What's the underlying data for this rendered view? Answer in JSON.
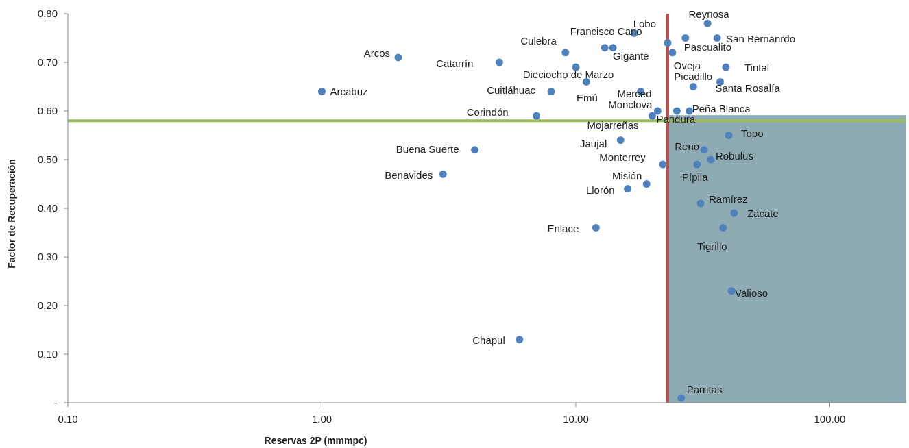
{
  "chart_data": {
    "type": "scatter",
    "xlabel": "Reservas 2P (mmmpc)",
    "ylabel": "Factor de Recuperación",
    "log": "x",
    "grid": false,
    "marker": "circle",
    "xlim": [
      0.1,
      200
    ],
    "xticks": [
      {
        "value": 0.1,
        "label": "0.10"
      },
      {
        "value": 1,
        "label": "1.00"
      },
      {
        "value": 10,
        "label": "10.00"
      },
      {
        "value": 100,
        "label": "100.00"
      }
    ],
    "ylim": [
      0,
      0.8
    ],
    "yticks": [
      {
        "value": 0,
        "label": "-"
      },
      {
        "value": 0.1,
        "label": "0.10"
      },
      {
        "value": 0.2,
        "label": "0.20"
      },
      {
        "value": 0.3,
        "label": "0.30"
      },
      {
        "value": 0.4,
        "label": "0.40"
      },
      {
        "value": 0.5,
        "label": "0.50"
      },
      {
        "value": 0.6,
        "label": "0.60"
      },
      {
        "value": 0.7,
        "label": "0.70"
      },
      {
        "value": 0.8,
        "label": "0.80"
      }
    ],
    "series": [
      {
        "color": "#4f81bd",
        "x": [
          1.0,
          2.0,
          5.0,
          9.1,
          13,
          17,
          33,
          36,
          14,
          27,
          24,
          39,
          10,
          11,
          8.0,
          18,
          29,
          37,
          21,
          28,
          7.0,
          20,
          25,
          4.0,
          15,
          40,
          32,
          34,
          22,
          3.0,
          19,
          30,
          16,
          31,
          42,
          38,
          12,
          41,
          6.0,
          26,
          23
        ],
        "values": [
          0.64,
          0.71,
          0.7,
          0.72,
          0.73,
          0.76,
          0.78,
          0.75,
          0.73,
          0.75,
          0.72,
          0.69,
          0.69,
          0.66,
          0.64,
          0.64,
          0.65,
          0.66,
          0.6,
          0.6,
          0.59,
          0.59,
          0.6,
          0.52,
          0.54,
          0.55,
          0.52,
          0.5,
          0.49,
          0.47,
          0.45,
          0.49,
          0.44,
          0.41,
          0.39,
          0.36,
          0.36,
          0.23,
          0.13,
          0.01,
          0.74
        ]
      }
    ],
    "ref_lines": [
      {
        "axis": "x",
        "value": 23,
        "color": "#c0504d"
      },
      {
        "axis": "y",
        "value": 0.58,
        "color": "#9bbb59"
      }
    ],
    "bands": [
      {
        "axis": "x",
        "from": 23,
        "to": 200,
        "color": "#8eabb3"
      }
    ],
    "annotations": [
      {
        "text": "Arcabuz",
        "x": 1.0,
        "y": 0.64
      },
      {
        "text": "Arcos",
        "x": 2.0,
        "y": 0.71
      },
      {
        "text": "Catarrín",
        "x": 5.0,
        "y": 0.7
      },
      {
        "text": "Culebra",
        "x": 9.1,
        "y": 0.72
      },
      {
        "text": "Francisco Cano",
        "x": 13,
        "y": 0.73
      },
      {
        "text": "Lobo",
        "x": 17,
        "y": 0.76
      },
      {
        "text": "Reynosa",
        "x": 33,
        "y": 0.78
      },
      {
        "text": "San Bernanrdo",
        "x": 36,
        "y": 0.75
      },
      {
        "text": "Gigante",
        "x": 14,
        "y": 0.73
      },
      {
        "text": "Pascualito",
        "x": 27,
        "y": 0.75
      },
      {
        "text": "Oveja",
        "x": 24,
        "y": 0.72
      },
      {
        "text": "Tintal",
        "x": 39,
        "y": 0.69
      },
      {
        "text": "Dieciocho de Marzo",
        "x": 10,
        "y": 0.69
      },
      {
        "text": "Emú",
        "x": 11,
        "y": 0.66
      },
      {
        "text": "Cuitláhuac",
        "x": 8.0,
        "y": 0.64
      },
      {
        "text": "Merced",
        "x": 18,
        "y": 0.64
      },
      {
        "text": "Picadillo",
        "x": 29,
        "y": 0.65
      },
      {
        "text": "Santa Rosalía",
        "x": 37,
        "y": 0.66
      },
      {
        "text": "Monclova",
        "x": 21,
        "y": 0.6
      },
      {
        "text": "Peña Blanca",
        "x": 28,
        "y": 0.6
      },
      {
        "text": "Corindón",
        "x": 7.0,
        "y": 0.59
      },
      {
        "text": "Mojarreñas",
        "x": 20,
        "y": 0.59
      },
      {
        "text": "Pandura",
        "x": 25,
        "y": 0.6
      },
      {
        "text": "Buena Suerte",
        "x": 4.0,
        "y": 0.52
      },
      {
        "text": "Jaujal",
        "x": 15,
        "y": 0.54
      },
      {
        "text": "Topo",
        "x": 40,
        "y": 0.55
      },
      {
        "text": "Reno",
        "x": 32,
        "y": 0.52
      },
      {
        "text": "Robulus",
        "x": 34,
        "y": 0.5
      },
      {
        "text": "Monterrey",
        "x": 22,
        "y": 0.49
      },
      {
        "text": "Benavides",
        "x": 3.0,
        "y": 0.47
      },
      {
        "text": "Misión",
        "x": 19,
        "y": 0.45
      },
      {
        "text": "Pípila",
        "x": 30,
        "y": 0.49
      },
      {
        "text": "Llorón",
        "x": 16,
        "y": 0.44
      },
      {
        "text": "Ramírez",
        "x": 31,
        "y": 0.41
      },
      {
        "text": "Zacate",
        "x": 42,
        "y": 0.39
      },
      {
        "text": "Tigrillo",
        "x": 38,
        "y": 0.36
      },
      {
        "text": "Enlace",
        "x": 12,
        "y": 0.36
      },
      {
        "text": "Valioso",
        "x": 41,
        "y": 0.23
      },
      {
        "text": "Chapul",
        "x": 6.0,
        "y": 0.13
      },
      {
        "text": "Parritas",
        "x": 26,
        "y": 0.01
      }
    ]
  }
}
